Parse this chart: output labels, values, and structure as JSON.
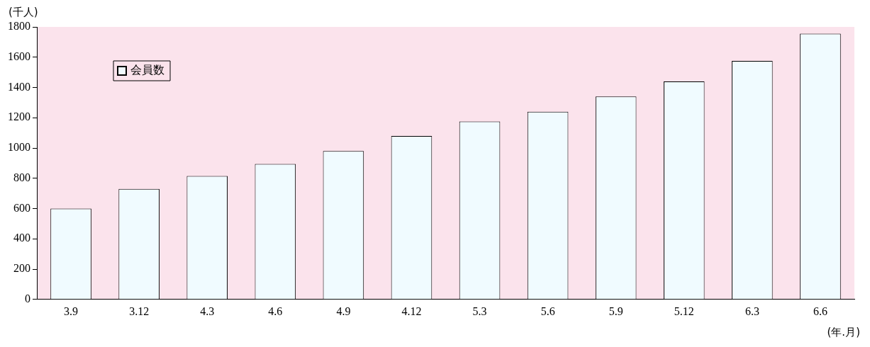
{
  "chart_data": {
    "type": "bar",
    "ylabel": "(千人)",
    "xlabel": "(年.月)",
    "categories": [
      "3.9",
      "3.12",
      "4.3",
      "4.6",
      "4.9",
      "4.12",
      "5.3",
      "5.6",
      "5.9",
      "5.12",
      "6.3",
      "6.6"
    ],
    "series": [
      {
        "name": "会員数",
        "color": "#f0fbff",
        "values": [
          600,
          730,
          815,
          895,
          980,
          1080,
          1175,
          1240,
          1340,
          1440,
          1575,
          1755
        ]
      }
    ],
    "ylim": [
      0,
      1800
    ],
    "yticks": [
      0,
      200,
      400,
      600,
      800,
      1000,
      1200,
      1400,
      1600,
      1800
    ],
    "grid": false,
    "legend": "top left"
  }
}
